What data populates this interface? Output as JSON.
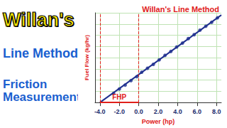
{
  "chart_data": {
    "type": "scatter",
    "title": "Willan's Line Method",
    "x_label": "Power (hp)",
    "y_label": "Fuel Flow (kg/hr)",
    "xlim": [
      -4.5,
      8.5
    ],
    "xticks": [
      {
        "value": -4,
        "label": "-4.0"
      },
      {
        "value": -2,
        "label": "-2.0"
      },
      {
        "value": 0,
        "label": "0.0"
      },
      {
        "value": 2,
        "label": "2.0"
      },
      {
        "value": 4,
        "label": "4.0"
      },
      {
        "value": 6,
        "label": "6.0"
      },
      {
        "value": 8,
        "label": "8.0"
      }
    ],
    "ylim": [
      0,
      1.6
    ],
    "yticks": [
      0,
      0.2,
      0.4,
      0.6,
      0.8,
      1.0,
      1.2,
      1.4,
      1.6
    ],
    "grid": true,
    "tick_labels": "x",
    "series": [
      {
        "type": "scatter",
        "color": "#1f2f8f",
        "marker": "circle",
        "x": [
          -2.6,
          -2.0,
          -1.4,
          -0.8,
          -0.2,
          0.3,
          0.9,
          1.5,
          2.1,
          2.7,
          3.3,
          3.9,
          4.5,
          5.1,
          5.7,
          6.3,
          6.9,
          7.5,
          8.1
        ],
        "values": [
          0.16,
          0.24,
          0.31,
          0.39,
          0.46,
          0.54,
          0.61,
          0.68,
          0.76,
          0.84,
          0.91,
          0.99,
          1.06,
          1.14,
          1.21,
          1.29,
          1.36,
          1.43,
          1.51
        ]
      },
      {
        "type": "line",
        "color": "#1f2f8f",
        "line_style": "solid",
        "x": [
          -4,
          8.5
        ],
        "values": [
          0,
          1.56
        ]
      }
    ],
    "annotations": [
      {
        "text": "FHP",
        "color": "#e0201b",
        "x_from": -4,
        "x_to": 0
      }
    ]
  },
  "text_panel": {
    "lines": [
      {
        "text": "Willan's",
        "color": "#f5e400"
      },
      {
        "text": "Line Method",
        "color": "#1a5fd0"
      },
      {
        "text": "Friction Measurement",
        "color": "#1a5fd0"
      }
    ]
  }
}
